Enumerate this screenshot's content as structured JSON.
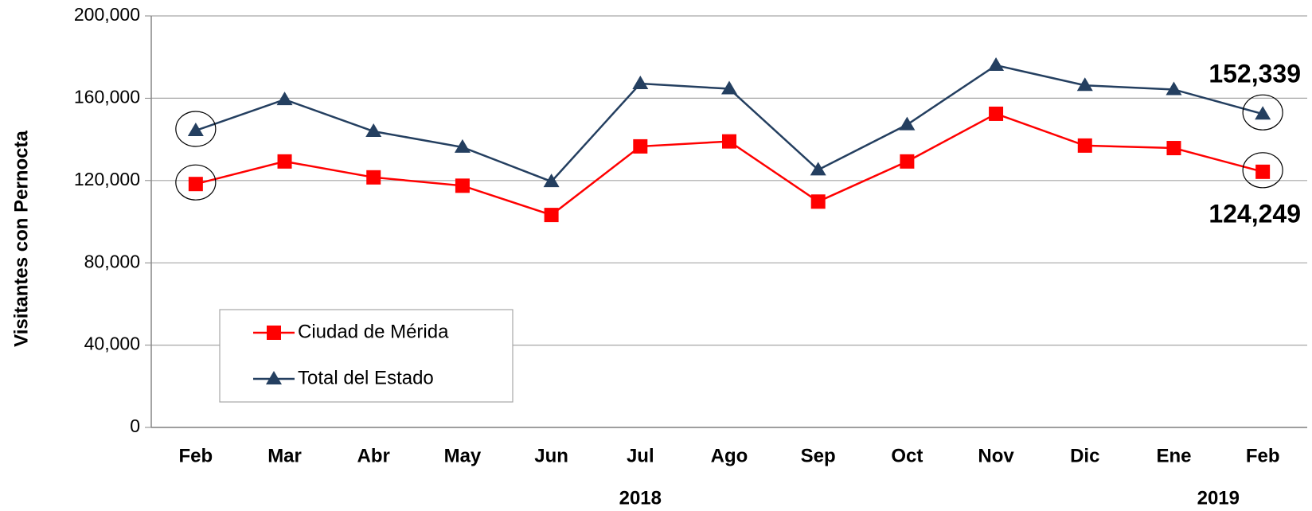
{
  "chart_data": {
    "type": "line",
    "y_label": "Visitantes con Pernocta",
    "categories": [
      "Feb",
      "Mar",
      "Abr",
      "May",
      "Jun",
      "Jul",
      "Ago",
      "Sep",
      "Oct",
      "Nov",
      "Dic",
      "Ene",
      "Feb"
    ],
    "year_labels": [
      "2018",
      "2019"
    ],
    "series": [
      {
        "name": "Ciudad de Mérida",
        "color": "#ff0000",
        "marker": "square",
        "values": [
          118300,
          129270,
          121540,
          117480,
          103250,
          136590,
          139020,
          109760,
          129270,
          152440,
          136990,
          135770,
          124249
        ],
        "value_labels": [
          null,
          null,
          null,
          null,
          null,
          null,
          null,
          null,
          null,
          null,
          null,
          null,
          "124,249"
        ]
      },
      {
        "name": "Total del Estado",
        "color": "#243f60",
        "marker": "triangle",
        "values": [
          144300,
          159350,
          143900,
          136200,
          119500,
          167100,
          164600,
          125200,
          147150,
          176000,
          166260,
          164230,
          152339
        ],
        "value_labels": [
          null,
          null,
          null,
          null,
          null,
          null,
          null,
          null,
          null,
          null,
          null,
          null,
          "152,339"
        ]
      }
    ],
    "ylim": [
      0,
      200000
    ],
    "yticks": [
      0,
      {
        "value": 40000,
        "label": "40,000"
      },
      {
        "value": 80000,
        "label": "80,000"
      },
      {
        "value": 120000,
        "label": "120,000"
      },
      {
        "value": 160000,
        "label": "160,000"
      },
      {
        "value": 200000,
        "label": "200,000"
      }
    ],
    "grid": true,
    "legend": "lower left"
  }
}
